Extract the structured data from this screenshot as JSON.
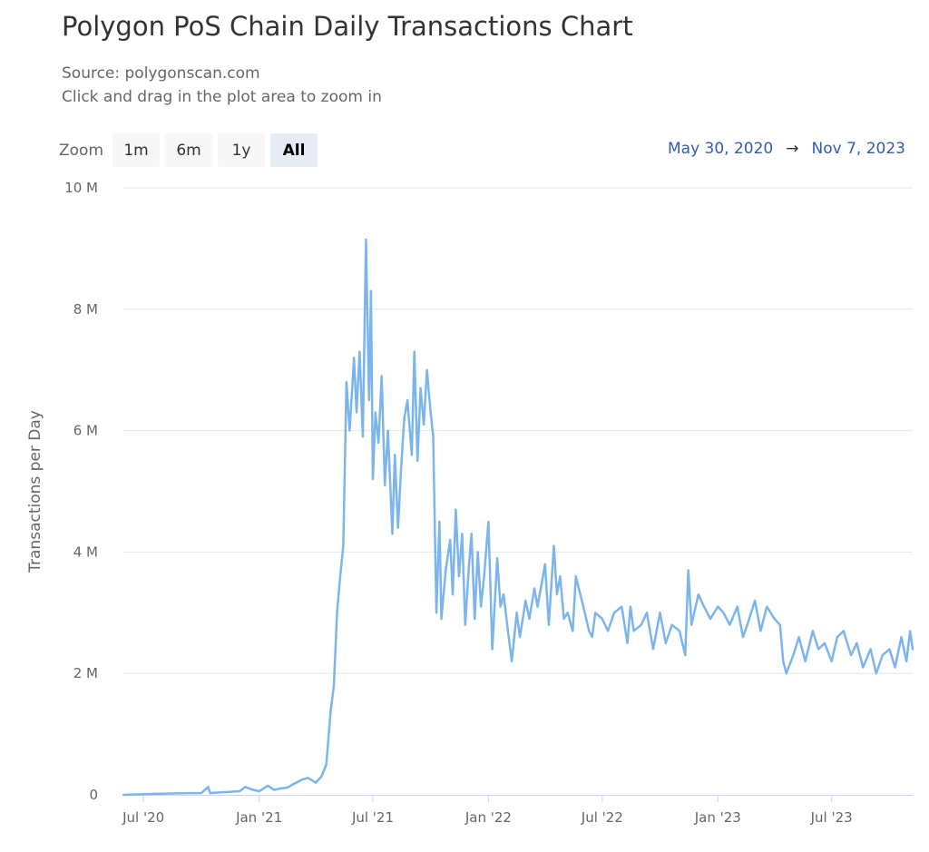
{
  "title": "Polygon PoS Chain Daily Transactions Chart",
  "subtitle_source": "Source: polygonscan.com",
  "subtitle_hint": "Click and drag in the plot area to zoom in",
  "zoom": {
    "label": "Zoom",
    "buttons": [
      "1m",
      "6m",
      "1y",
      "All"
    ],
    "selected": "All"
  },
  "range": {
    "from": "May 30, 2020",
    "arrow": "→",
    "to": "Nov 7, 2023"
  },
  "colors": {
    "series": "#7cb5ec",
    "range_text": "#335cad",
    "grid": "#e6e6e6",
    "zoom_active_bg": "#e6ebf5"
  },
  "chart_data": {
    "type": "line",
    "ylabel": "Transactions per Day",
    "ylim": [
      0,
      10000000
    ],
    "xlim": [
      "2020-05-30",
      "2023-11-07"
    ],
    "y_ticks": [
      {
        "value": 0,
        "label": "0"
      },
      {
        "value": 2000000,
        "label": "2 M"
      },
      {
        "value": 4000000,
        "label": "4 M"
      },
      {
        "value": 6000000,
        "label": "6 M"
      },
      {
        "value": 8000000,
        "label": "8 M"
      },
      {
        "value": 10000000,
        "label": "10 M"
      }
    ],
    "x_ticks": [
      {
        "date": "2020-07-01",
        "label": "Jul '20"
      },
      {
        "date": "2021-01-01",
        "label": "Jan '21"
      },
      {
        "date": "2021-07-01",
        "label": "Jul '21"
      },
      {
        "date": "2022-01-01",
        "label": "Jan '22"
      },
      {
        "date": "2022-07-01",
        "label": "Jul '22"
      },
      {
        "date": "2023-01-01",
        "label": "Jan '23"
      },
      {
        "date": "2023-07-01",
        "label": "Jul '23"
      }
    ],
    "grid": true,
    "legend": "none",
    "series": [
      {
        "x": [
          "2020-05-30",
          "2020-07-01",
          "2020-08-01",
          "2020-09-01",
          "2020-10-01",
          "2020-10-12",
          "2020-10-15",
          "2020-11-01",
          "2020-12-01",
          "2020-12-10",
          "2020-12-20",
          "2021-01-01",
          "2021-01-15",
          "2021-01-25",
          "2021-02-01",
          "2021-02-15",
          "2021-02-25",
          "2021-03-01",
          "2021-03-10",
          "2021-03-20",
          "2021-04-01",
          "2021-04-10",
          "2021-04-18",
          "2021-04-25",
          "2021-04-30",
          "2021-05-05",
          "2021-05-10",
          "2021-05-15",
          "2021-05-20",
          "2021-05-25",
          "2021-06-01",
          "2021-06-05",
          "2021-06-10",
          "2021-06-15",
          "2021-06-20",
          "2021-06-25",
          "2021-06-28",
          "2021-07-01",
          "2021-07-05",
          "2021-07-10",
          "2021-07-15",
          "2021-07-20",
          "2021-07-25",
          "2021-08-01",
          "2021-08-05",
          "2021-08-10",
          "2021-08-15",
          "2021-08-20",
          "2021-08-25",
          "2021-09-01",
          "2021-09-05",
          "2021-09-10",
          "2021-09-15",
          "2021-09-20",
          "2021-09-25",
          "2021-10-01",
          "2021-10-05",
          "2021-10-10",
          "2021-10-15",
          "2021-10-18",
          "2021-10-25",
          "2021-11-01",
          "2021-11-05",
          "2021-11-10",
          "2021-11-15",
          "2021-11-20",
          "2021-11-25",
          "2021-12-01",
          "2021-12-05",
          "2021-12-10",
          "2021-12-15",
          "2021-12-20",
          "2021-12-25",
          "2022-01-01",
          "2022-01-07",
          "2022-01-15",
          "2022-01-20",
          "2022-01-25",
          "2022-02-01",
          "2022-02-07",
          "2022-02-15",
          "2022-02-20",
          "2022-03-01",
          "2022-03-07",
          "2022-03-15",
          "2022-03-20",
          "2022-04-01",
          "2022-04-07",
          "2022-04-15",
          "2022-04-20",
          "2022-04-25",
          "2022-05-01",
          "2022-05-07",
          "2022-05-15",
          "2022-05-20",
          "2022-06-01",
          "2022-06-10",
          "2022-06-15",
          "2022-06-20",
          "2022-07-01",
          "2022-07-10",
          "2022-07-20",
          "2022-08-01",
          "2022-08-10",
          "2022-08-15",
          "2022-08-20",
          "2022-09-01",
          "2022-09-10",
          "2022-09-20",
          "2022-10-01",
          "2022-10-10",
          "2022-10-20",
          "2022-11-01",
          "2022-11-10",
          "2022-11-15",
          "2022-11-20",
          "2022-12-01",
          "2022-12-10",
          "2022-12-20",
          "2023-01-01",
          "2023-01-10",
          "2023-01-20",
          "2023-02-01",
          "2023-02-10",
          "2023-02-20",
          "2023-03-01",
          "2023-03-10",
          "2023-03-15",
          "2023-03-20",
          "2023-04-01",
          "2023-04-10",
          "2023-04-15",
          "2023-04-20",
          "2023-05-01",
          "2023-05-10",
          "2023-05-20",
          "2023-06-01",
          "2023-06-10",
          "2023-06-20",
          "2023-07-01",
          "2023-07-10",
          "2023-07-20",
          "2023-08-01",
          "2023-08-10",
          "2023-08-20",
          "2023-09-01",
          "2023-09-10",
          "2023-09-20",
          "2023-10-01",
          "2023-10-10",
          "2023-10-20",
          "2023-10-28",
          "2023-11-03",
          "2023-11-07"
        ],
        "y": [
          0,
          10000,
          20000,
          25000,
          30000,
          130000,
          30000,
          40000,
          60000,
          130000,
          90000,
          60000,
          150000,
          80000,
          100000,
          120000,
          180000,
          200000,
          250000,
          280000,
          200000,
          300000,
          500000,
          1400000,
          1800000,
          3000000,
          3600000,
          4100000,
          6800000,
          6000000,
          7200000,
          6300000,
          7300000,
          5900000,
          9150000,
          6500000,
          8300000,
          5200000,
          6300000,
          5800000,
          6900000,
          5100000,
          6000000,
          4300000,
          5600000,
          4400000,
          5400000,
          6200000,
          6500000,
          5600000,
          7300000,
          5500000,
          6700000,
          6100000,
          7000000,
          6300000,
          5900000,
          3000000,
          4500000,
          2900000,
          3700000,
          4200000,
          3300000,
          4700000,
          3600000,
          4300000,
          2800000,
          3800000,
          4300000,
          2900000,
          4000000,
          3100000,
          3600000,
          4500000,
          2400000,
          3900000,
          3100000,
          3300000,
          2700000,
          2200000,
          3000000,
          2600000,
          3200000,
          2900000,
          3400000,
          3100000,
          3800000,
          2800000,
          4100000,
          3300000,
          3600000,
          2900000,
          3000000,
          2700000,
          3600000,
          3100000,
          2700000,
          2600000,
          3000000,
          2900000,
          2700000,
          3000000,
          3100000,
          2500000,
          3100000,
          2700000,
          2800000,
          3000000,
          2400000,
          3000000,
          2500000,
          2800000,
          2700000,
          2300000,
          3700000,
          2800000,
          3300000,
          3100000,
          2900000,
          3100000,
          3000000,
          2800000,
          3100000,
          2600000,
          2900000,
          3200000,
          2700000,
          2900000,
          3100000,
          2900000,
          2800000,
          2200000,
          2000000,
          2300000,
          2600000,
          2200000,
          2700000,
          2400000,
          2500000,
          2200000,
          2600000,
          2700000,
          2300000,
          2500000,
          2100000,
          2400000,
          2000000,
          2300000,
          2400000,
          2100000,
          2600000,
          2200000,
          2700000,
          2400000
        ]
      }
    ]
  }
}
